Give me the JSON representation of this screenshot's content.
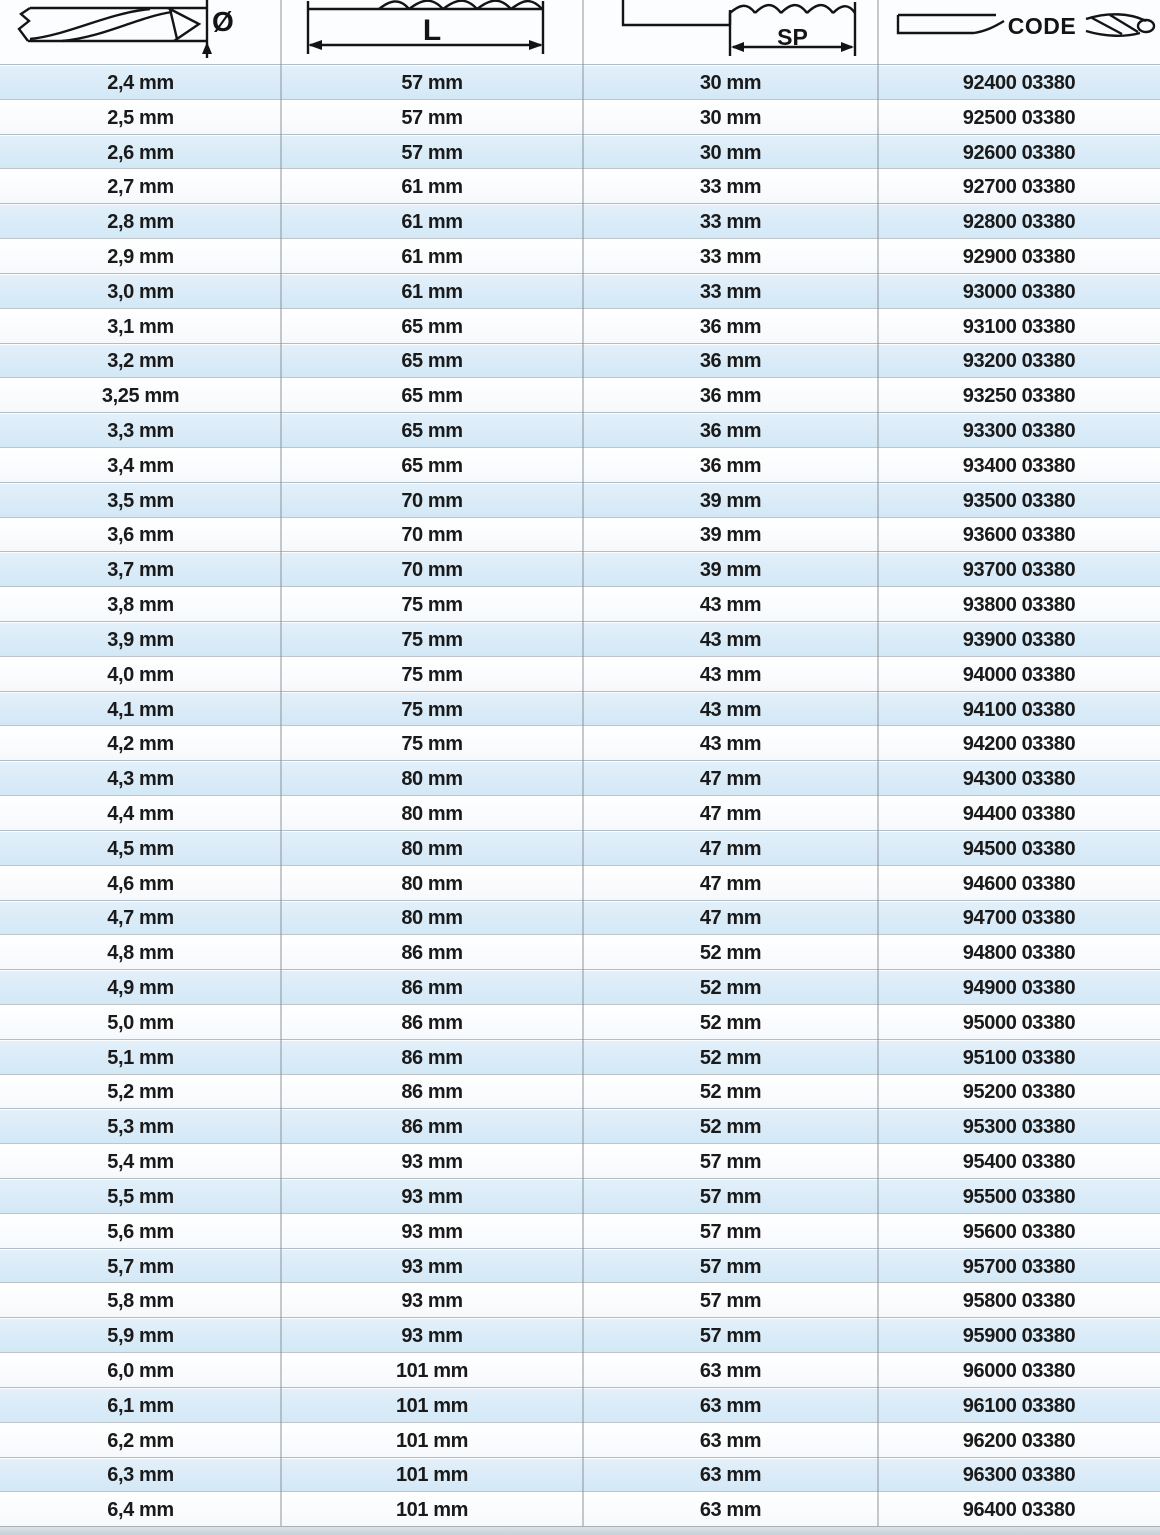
{
  "header": {
    "diameter_label": "Ø",
    "length_label": "L",
    "spiral_label": "SP",
    "code_label": "CODE",
    "icons": [
      "drill-bit-diameter-diagram-icon",
      "drill-bit-length-diagram-icon",
      "drill-bit-spiral-length-diagram-icon",
      "drill-bit-code-diagram-icon"
    ]
  },
  "colors": {
    "row_blue": "#d6e9f6",
    "row_white": "#ffffff",
    "row_border": "#9ba2a8",
    "text": "#1a1a1a"
  },
  "table": {
    "columns": [
      "diameter",
      "total_length",
      "spiral_length",
      "code"
    ],
    "rows": [
      [
        "2,4 mm",
        "57 mm",
        "30 mm",
        "92400 03380"
      ],
      [
        "2,5 mm",
        "57 mm",
        "30 mm",
        "92500 03380"
      ],
      [
        "2,6 mm",
        "57 mm",
        "30 mm",
        "92600 03380"
      ],
      [
        "2,7 mm",
        "61 mm",
        "33 mm",
        "92700 03380"
      ],
      [
        "2,8 mm",
        "61 mm",
        "33 mm",
        "92800 03380"
      ],
      [
        "2,9 mm",
        "61 mm",
        "33 mm",
        "92900 03380"
      ],
      [
        "3,0 mm",
        "61 mm",
        "33 mm",
        "93000 03380"
      ],
      [
        "3,1 mm",
        "65 mm",
        "36 mm",
        "93100 03380"
      ],
      [
        "3,2 mm",
        "65 mm",
        "36 mm",
        "93200 03380"
      ],
      [
        "3,25 mm",
        "65 mm",
        "36 mm",
        "93250 03380"
      ],
      [
        "3,3 mm",
        "65 mm",
        "36 mm",
        "93300 03380"
      ],
      [
        "3,4 mm",
        "65 mm",
        "36 mm",
        "93400 03380"
      ],
      [
        "3,5 mm",
        "70 mm",
        "39 mm",
        "93500 03380"
      ],
      [
        "3,6 mm",
        "70 mm",
        "39 mm",
        "93600 03380"
      ],
      [
        "3,7 mm",
        "70 mm",
        "39 mm",
        "93700 03380"
      ],
      [
        "3,8 mm",
        "75 mm",
        "43 mm",
        "93800 03380"
      ],
      [
        "3,9 mm",
        "75 mm",
        "43 mm",
        "93900 03380"
      ],
      [
        "4,0 mm",
        "75 mm",
        "43 mm",
        "94000 03380"
      ],
      [
        "4,1 mm",
        "75 mm",
        "43 mm",
        "94100 03380"
      ],
      [
        "4,2 mm",
        "75 mm",
        "43 mm",
        "94200 03380"
      ],
      [
        "4,3 mm",
        "80 mm",
        "47 mm",
        "94300 03380"
      ],
      [
        "4,4 mm",
        "80 mm",
        "47 mm",
        "94400 03380"
      ],
      [
        "4,5 mm",
        "80 mm",
        "47 mm",
        "94500 03380"
      ],
      [
        "4,6 mm",
        "80 mm",
        "47 mm",
        "94600 03380"
      ],
      [
        "4,7 mm",
        "80 mm",
        "47 mm",
        "94700 03380"
      ],
      [
        "4,8 mm",
        "86 mm",
        "52 mm",
        "94800 03380"
      ],
      [
        "4,9 mm",
        "86 mm",
        "52 mm",
        "94900 03380"
      ],
      [
        "5,0 mm",
        "86 mm",
        "52 mm",
        "95000 03380"
      ],
      [
        "5,1 mm",
        "86 mm",
        "52 mm",
        "95100 03380"
      ],
      [
        "5,2 mm",
        "86 mm",
        "52 mm",
        "95200 03380"
      ],
      [
        "5,3 mm",
        "86 mm",
        "52 mm",
        "95300 03380"
      ],
      [
        "5,4 mm",
        "93 mm",
        "57 mm",
        "95400 03380"
      ],
      [
        "5,5 mm",
        "93 mm",
        "57 mm",
        "95500 03380"
      ],
      [
        "5,6 mm",
        "93 mm",
        "57 mm",
        "95600 03380"
      ],
      [
        "5,7 mm",
        "93 mm",
        "57 mm",
        "95700 03380"
      ],
      [
        "5,8 mm",
        "93 mm",
        "57 mm",
        "95800 03380"
      ],
      [
        "5,9 mm",
        "93 mm",
        "57 mm",
        "95900 03380"
      ],
      [
        "6,0 mm",
        "101 mm",
        "63 mm",
        "96000 03380"
      ],
      [
        "6,1 mm",
        "101 mm",
        "63 mm",
        "96100 03380"
      ],
      [
        "6,2 mm",
        "101 mm",
        "63 mm",
        "96200 03380"
      ],
      [
        "6,3 mm",
        "101 mm",
        "63 mm",
        "96300 03380"
      ],
      [
        "6,4 mm",
        "101 mm",
        "63 mm",
        "96400 03380"
      ]
    ]
  }
}
